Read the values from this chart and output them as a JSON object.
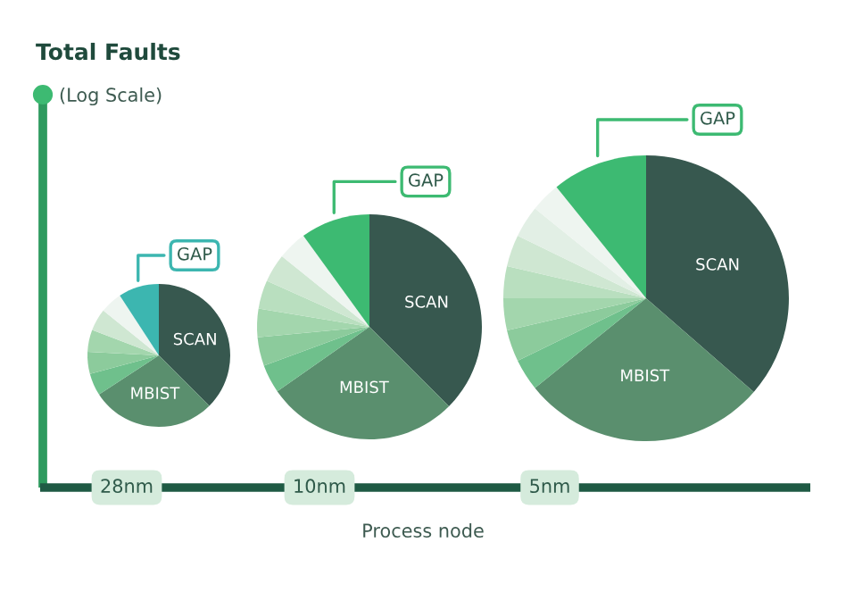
{
  "chart_data": [
    {
      "type": "pie",
      "xlabel": "28nm",
      "categories": [
        "SCAN",
        "MBIST",
        null,
        null,
        null,
        null,
        null,
        "GAP"
      ],
      "values": [
        37.5,
        28.3,
        5,
        5,
        5,
        5,
        5,
        9.2
      ],
      "colors": [
        "#37584f",
        "#5a8f6e",
        "#6fc08c",
        "#8ccb9c",
        "#a3d6ad",
        "#cfe7d2",
        "#eef5f0",
        "#3cb6b0"
      ]
    },
    {
      "type": "pie",
      "xlabel": "10nm",
      "categories": [
        "SCAN",
        "MBIST",
        null,
        null,
        null,
        null,
        null,
        null,
        "GAP"
      ],
      "values": [
        37.5,
        27.8,
        4.1,
        4.1,
        4.1,
        4.1,
        4.1,
        4.2,
        10
      ],
      "colors": [
        "#37584f",
        "#5a8f6e",
        "#6fc08c",
        "#8ccb9c",
        "#a3d6ad",
        "#b9dfbf",
        "#cfe7d2",
        "#eef5f0",
        "#3dba72"
      ]
    },
    {
      "type": "pie",
      "xlabel": "5nm",
      "categories": [
        "SCAN",
        "MBIST",
        null,
        null,
        null,
        null,
        null,
        null,
        null,
        "GAP"
      ],
      "values": [
        36.4,
        27.8,
        3.6,
        3.6,
        3.6,
        3.6,
        3.6,
        3.6,
        3.4,
        10.8
      ],
      "colors": [
        "#37584f",
        "#5a8f6e",
        "#6fc08c",
        "#8ccb9c",
        "#a3d6ad",
        "#b9dfbf",
        "#cfe7d2",
        "#e2efe5",
        "#eef5f0",
        "#3dba72"
      ]
    },
    {
      "type": "other",
      "title": "Total Faults",
      "annotations": [
        "(Log Scale)",
        "Process node"
      ]
    }
  ]
}
